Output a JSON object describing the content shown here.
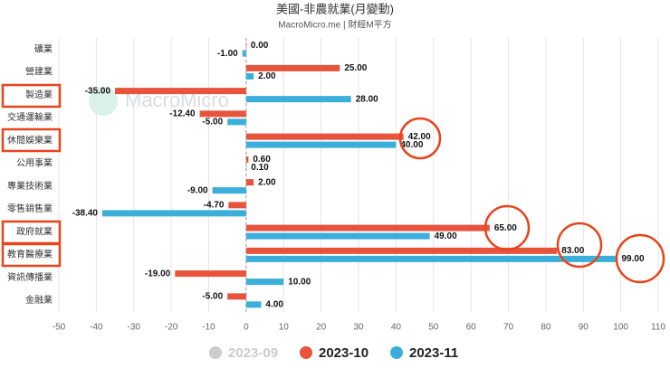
{
  "chart_data": {
    "type": "hbar",
    "title": "美國-非農就業(月變動)",
    "subtitle": "MacroMicro.me | 財經M平方",
    "watermark": "MacroMicro",
    "categories": [
      "礦業",
      "營建業",
      "製造業",
      "交通運輸業",
      "休閒娛樂業",
      "公用事業",
      "專業技術業",
      "零售銷售業",
      "政府就業",
      "教育醫療業",
      "資訊傳播業",
      "金融業"
    ],
    "series": [
      {
        "name": "2023-09",
        "color": "#cccccc",
        "hidden": true,
        "values": [
          null,
          null,
          null,
          null,
          null,
          null,
          null,
          null,
          null,
          null,
          null,
          null
        ]
      },
      {
        "name": "2023-10",
        "color": "#e8533b",
        "values": [
          0,
          25,
          -35,
          -12.4,
          42,
          0.6,
          2,
          -4.7,
          65,
          83,
          -19,
          -5
        ],
        "value_labels": [
          "0.00",
          "25.00",
          "-35.00",
          "-12.40",
          "42.00",
          "0.60",
          "2.00",
          "-4.70",
          "65.00",
          "83.00",
          "-19.00",
          "-5.00"
        ]
      },
      {
        "name": "2023-11",
        "color": "#3bafd9",
        "values": [
          -1,
          2,
          28,
          -5,
          40,
          0.1,
          -9,
          -38.4,
          49,
          99,
          10,
          4
        ],
        "value_labels": [
          "-1.00",
          "2.00",
          "28.00",
          "-5.00",
          "40.00",
          "0.10",
          "-9.00",
          "-38.40",
          "49.00",
          "99.00",
          "10.00",
          "4.00"
        ]
      }
    ],
    "xlim": [
      -50,
      110
    ],
    "xticks": [
      -50,
      -40,
      -30,
      -20,
      -10,
      0,
      10,
      20,
      30,
      40,
      50,
      60,
      70,
      80,
      90,
      100,
      110
    ],
    "grid": true
  }
}
